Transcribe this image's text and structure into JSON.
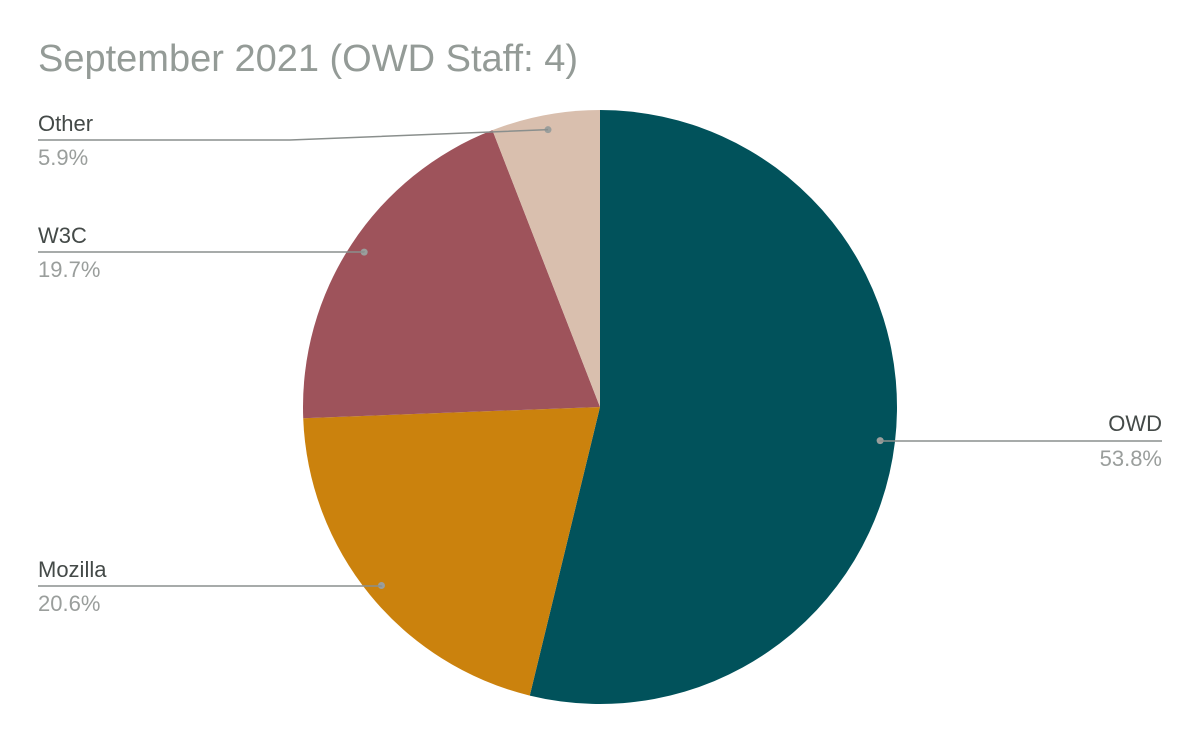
{
  "chart_data": {
    "type": "pie",
    "title": "September 2021 (OWD Staff: 4)",
    "slices": [
      {
        "name": "OWD",
        "value": 53.8,
        "label": "53.8%",
        "color": "#01525b"
      },
      {
        "name": "Mozilla",
        "value": 20.6,
        "label": "20.6%",
        "color": "#cb820d"
      },
      {
        "name": "W3C",
        "value": 19.7,
        "label": "19.7%",
        "color": "#9e535b"
      },
      {
        "name": "Other",
        "value": 5.9,
        "label": "5.9%",
        "color": "#d9bfae"
      }
    ],
    "start_angle": "12 o'clock",
    "direction": "clockwise",
    "legend": "none",
    "labels": "outside with leader lines"
  }
}
